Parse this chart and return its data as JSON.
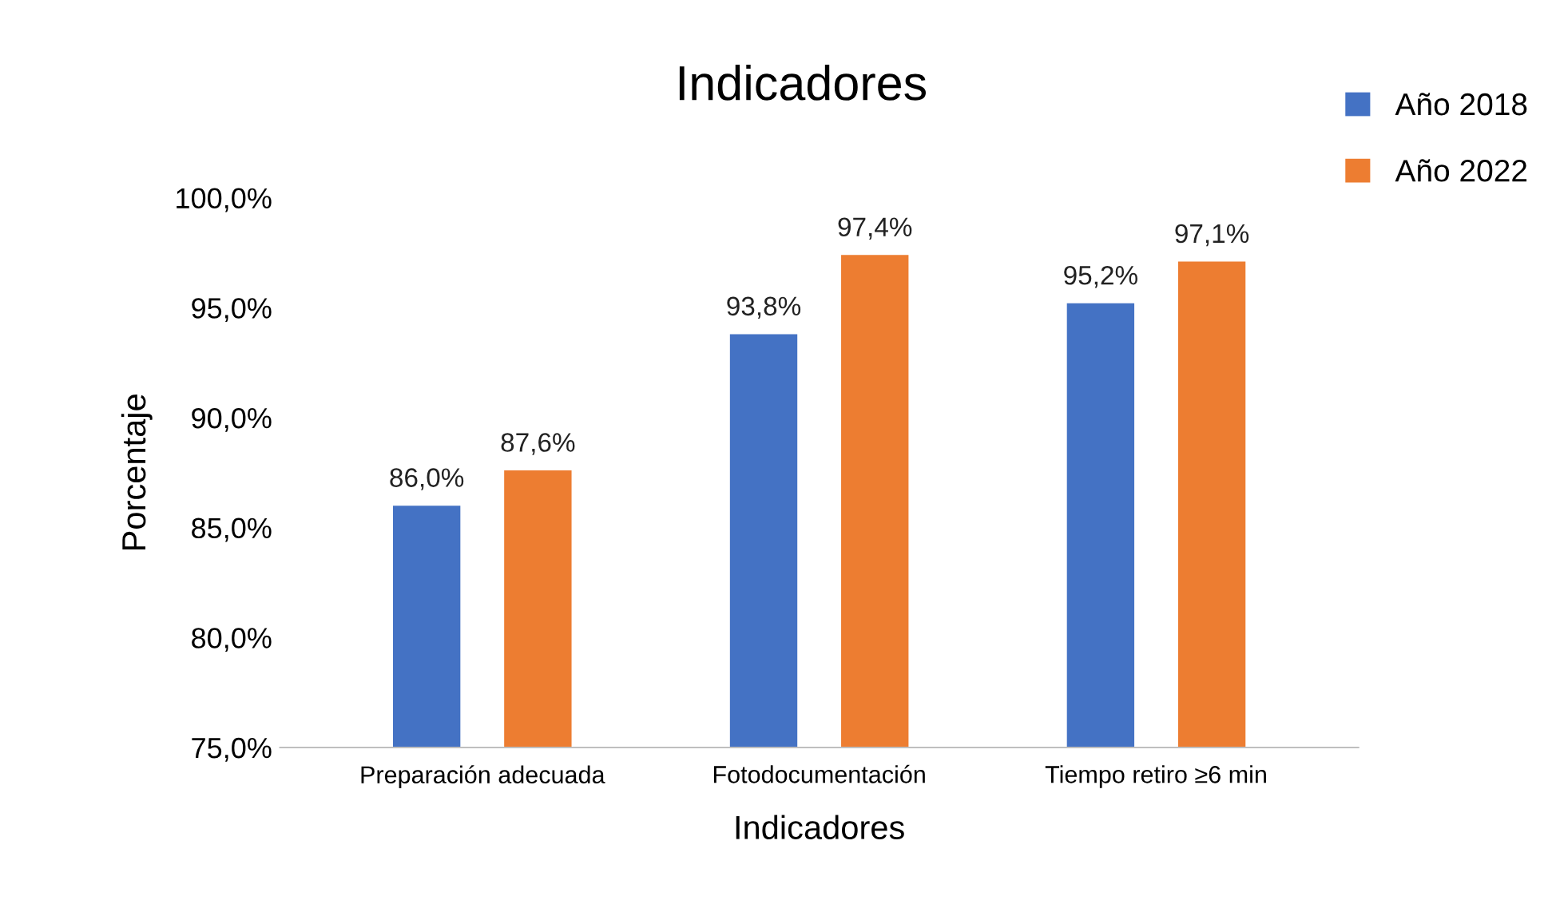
{
  "chart_data": {
    "type": "bar",
    "title": "Indicadores",
    "xlabel": "Indicadores",
    "ylabel": "Porcentaje",
    "categories": [
      "Preparación adecuada",
      "Fotodocumentación",
      "Tiempo retiro ≥6 min"
    ],
    "series": [
      {
        "name": "Año 2018",
        "color": "#4472c4",
        "values": [
          86.0,
          93.8,
          95.2
        ],
        "value_labels": [
          "86,0%",
          "93,8%",
          "95,2%"
        ]
      },
      {
        "name": "Año 2022",
        "color": "#ed7d31",
        "values": [
          87.6,
          97.4,
          97.1
        ],
        "value_labels": [
          "87,6%",
          "97,4%",
          "97,1%"
        ]
      }
    ],
    "ylim": [
      75,
      100
    ],
    "yticks": [
      {
        "value": 75,
        "label": "75,0%"
      },
      {
        "value": 80,
        "label": "80,0%"
      },
      {
        "value": 85,
        "label": "85,0%"
      },
      {
        "value": 90,
        "label": "90,0%"
      },
      {
        "value": 95,
        "label": "95,0%"
      },
      {
        "value": 100,
        "label": "100,0%"
      }
    ],
    "grid": false,
    "legend": "top right"
  }
}
